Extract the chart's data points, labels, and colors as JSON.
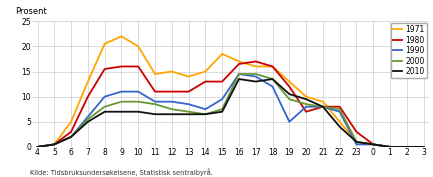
{
  "hours": [
    4,
    5,
    6,
    7,
    8,
    9,
    10,
    11,
    12,
    13,
    14,
    15,
    16,
    17,
    18,
    19,
    20,
    21,
    22,
    23,
    0,
    1,
    2,
    3
  ],
  "series": {
    "1971": [
      0,
      0.5,
      5,
      13,
      20.5,
      22,
      20,
      14.5,
      15,
      14,
      15,
      18.5,
      17,
      16,
      16,
      13,
      10,
      9,
      5,
      1,
      0.5,
      0,
      0,
      0
    ],
    "1980": [
      0,
      0.5,
      3,
      10,
      15.5,
      16,
      16,
      11,
      11,
      11,
      13,
      13,
      16.5,
      17,
      16,
      12,
      7,
      8,
      8,
      3,
      0.5,
      0,
      0,
      0
    ],
    "1990": [
      0,
      0.5,
      2,
      6,
      10,
      11,
      11,
      9,
      9,
      8.5,
      7.5,
      9.5,
      14.5,
      14,
      12,
      5,
      8,
      8,
      7,
      0.5,
      0.5,
      0,
      0,
      0
    ],
    "2000": [
      0,
      0.5,
      2,
      5.5,
      8,
      9,
      9,
      8.5,
      7.5,
      7,
      6.5,
      7.5,
      14.5,
      14.5,
      13.5,
      9.5,
      8.5,
      8,
      7.5,
      1,
      0.5,
      0,
      0,
      0
    ],
    "2010": [
      0,
      0.5,
      2,
      5,
      7,
      7,
      7,
      6.5,
      6.5,
      6.5,
      6.5,
      7,
      13.5,
      13,
      13.5,
      10.5,
      9.5,
      8,
      4,
      1,
      0.5,
      0,
      0,
      0
    ]
  },
  "colors": {
    "1971": "#FFA500",
    "1980": "#CC0000",
    "1990": "#3366CC",
    "2000": "#669933",
    "2010": "#111111"
  },
  "ylabel": "Prosent",
  "ylim": [
    0,
    25
  ],
  "yticks": [
    0,
    5,
    10,
    15,
    20,
    25
  ],
  "xlabel_note": "Kilde: Tidsbruksundersøkelsene, Statistisk sentralbyrå.",
  "bg_color": "#ffffff",
  "grid_color": "#cccccc",
  "linewidth": 1.3
}
